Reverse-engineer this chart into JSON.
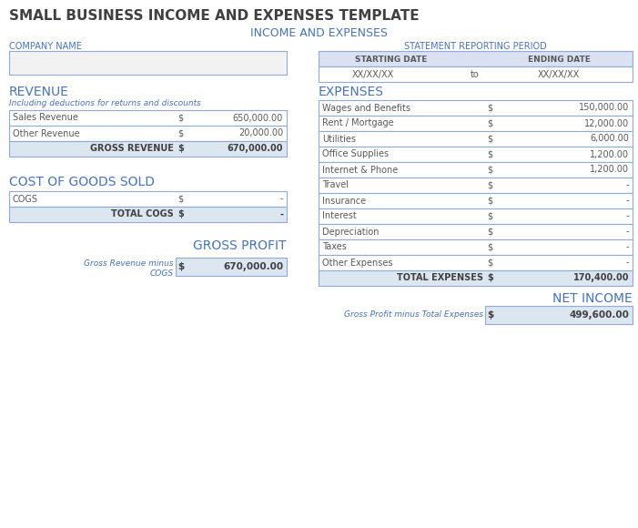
{
  "title": "SMALL BUSINESS INCOME AND EXPENSES TEMPLATE",
  "subtitle": "INCOME AND EXPENSES",
  "title_color": "#404040",
  "subtitle_color": "#4472c4",
  "company_name_label": "COMPANY NAME",
  "statement_label": "STATEMENT REPORTING PERIOD",
  "starting_date_label": "STARTING DATE",
  "ending_date_label": "ENDING DATE",
  "starting_date_val": "XX/XX/XX",
  "to_label": "to",
  "ending_date_val": "XX/XX/XX",
  "revenue_label": "REVENUE",
  "revenue_subtitle": "Including deductions for returns and discounts",
  "revenue_rows": [
    {
      "label": "Sales Revenue",
      "dollar": "$",
      "value": "650,000.00"
    },
    {
      "label": "Other Revenue",
      "dollar": "$",
      "value": "20,000.00"
    }
  ],
  "gross_revenue_label": "GROSS REVENUE",
  "gross_revenue_dollar": "$",
  "gross_revenue_value": "670,000.00",
  "cogs_label": "COST OF GOODS SOLD",
  "cogs_rows": [
    {
      "label": "COGS",
      "dollar": "$",
      "value": "-"
    }
  ],
  "total_cogs_label": "TOTAL COGS",
  "total_cogs_dollar": "$",
  "total_cogs_value": "-",
  "gross_profit_label": "GROSS PROFIT",
  "gross_profit_sublabel": "Gross Revenue minus\nCOGS",
  "gross_profit_dollar": "$",
  "gross_profit_value": "670,000.00",
  "expenses_label": "EXPENSES",
  "expense_rows": [
    {
      "label": "Wages and Benefits",
      "dollar": "$",
      "value": "150,000.00"
    },
    {
      "label": "Rent / Mortgage",
      "dollar": "$",
      "value": "12,000.00"
    },
    {
      "label": "Utilities",
      "dollar": "$",
      "value": "6,000.00"
    },
    {
      "label": "Office Supplies",
      "dollar": "$",
      "value": "1,200.00"
    },
    {
      "label": "Internet & Phone",
      "dollar": "$",
      "value": "1,200.00"
    },
    {
      "label": "Travel",
      "dollar": "$",
      "value": "-"
    },
    {
      "label": "Insurance",
      "dollar": "$",
      "value": "-"
    },
    {
      "label": "Interest",
      "dollar": "$",
      "value": "-"
    },
    {
      "label": "Depreciation",
      "dollar": "$",
      "value": "-"
    },
    {
      "label": "Taxes",
      "dollar": "$",
      "value": "-"
    },
    {
      "label": "Other Expenses",
      "dollar": "$",
      "value": "-"
    }
  ],
  "total_expenses_label": "TOTAL EXPENSES",
  "total_expenses_dollar": "$",
  "total_expenses_value": "170,400.00",
  "net_income_label": "NET INCOME",
  "net_income_sublabel": "Gross Profit minus Total Expenses",
  "net_income_dollar": "$",
  "net_income_value": "499,600.00",
  "header_bg": "#d9e1f2",
  "total_row_bg": "#dce6f1",
  "white_bg": "#ffffff",
  "light_gray_bg": "#f2f2f2",
  "border_color": "#8eaadb",
  "label_color": "#4472c4",
  "text_color": "#595959",
  "bold_text_color": "#404040"
}
